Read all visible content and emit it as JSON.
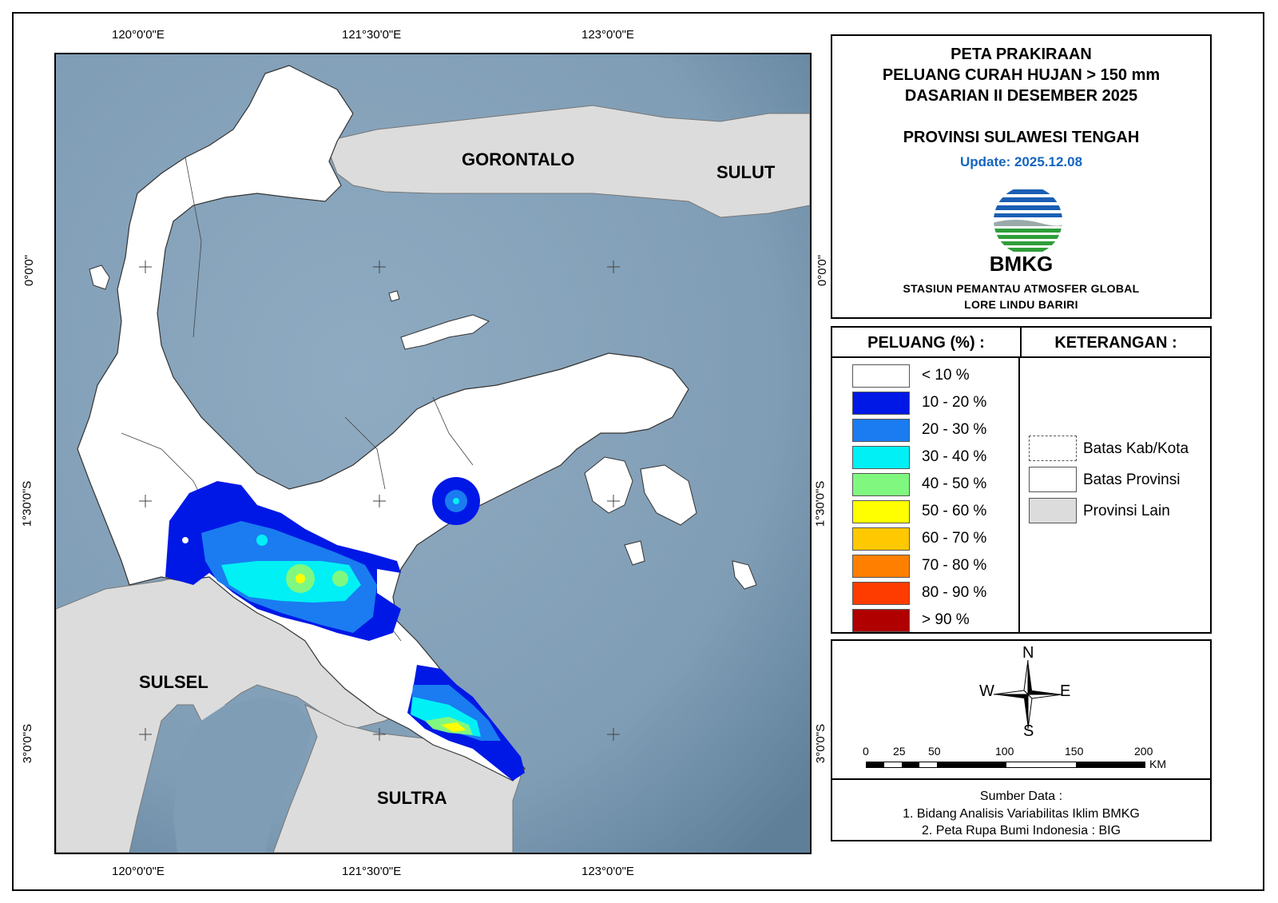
{
  "title": {
    "line1": "PETA PRAKIRAAN",
    "line2": "PELUANG CURAH HUJAN > 150 mm",
    "line3": "DASARIAN II DESEMBER 2025",
    "province": "PROVINSI SULAWESI TENGAH",
    "update": "Update: 2025.12.08"
  },
  "agency": {
    "logo_text": "BMKG",
    "station_line1": "STASIUN PEMANTAU ATMOSFER GLOBAL",
    "station_line2": "LORE LINDU BARIRI"
  },
  "coordinates": {
    "lon_labels": [
      "120°0'0\"E",
      "121°30'0\"E",
      "123°0'0\"E"
    ],
    "lat_labels": [
      "0°0'0\"",
      "1°30'0\"S",
      "3°0'0\"S"
    ]
  },
  "map_labels": {
    "gorontalo": "GORONTALO",
    "sulut": "SULUT",
    "sulsel": "SULSEL",
    "sultra": "SULTRA"
  },
  "legend": {
    "title": "PELUANG (%) :",
    "classes": [
      {
        "label": "< 10 %",
        "color": "#ffffff"
      },
      {
        "label": "10 - 20 %",
        "color": "#0018e6"
      },
      {
        "label": "20 - 30 %",
        "color": "#1a7cf0"
      },
      {
        "label": "30 - 40 %",
        "color": "#00f0f5"
      },
      {
        "label": "40 - 50 %",
        "color": "#80f880"
      },
      {
        "label": "50 - 60 %",
        "color": "#ffff00"
      },
      {
        "label": "60 - 70 %",
        "color": "#ffc800"
      },
      {
        "label": "70 - 80 %",
        "color": "#ff8000"
      },
      {
        "label": "80 - 90 %",
        "color": "#ff3c00"
      },
      {
        "label": "> 90 %",
        "color": "#b00000"
      }
    ]
  },
  "keterangan": {
    "title": "KETERANGAN :",
    "items": [
      {
        "label": "Batas Kab/Kota"
      },
      {
        "label": "Batas Provinsi"
      },
      {
        "label": "Provinsi Lain"
      }
    ]
  },
  "compass": {
    "n": "N",
    "s": "S",
    "e": "E",
    "w": "W"
  },
  "scale": {
    "ticks": [
      "0",
      "25",
      "50",
      "100",
      "150",
      "200"
    ],
    "unit": "KM"
  },
  "source": {
    "heading": "Sumber Data :",
    "line1": "1. Bidang Analisis Variabilitas Iklim BMKG",
    "line2": "2. Peta Rupa Bumi Indonesia : BIG"
  },
  "colors": {
    "sea": "#7f9db5",
    "other_province": "#dcdcdc",
    "update_text": "#1565c0"
  }
}
